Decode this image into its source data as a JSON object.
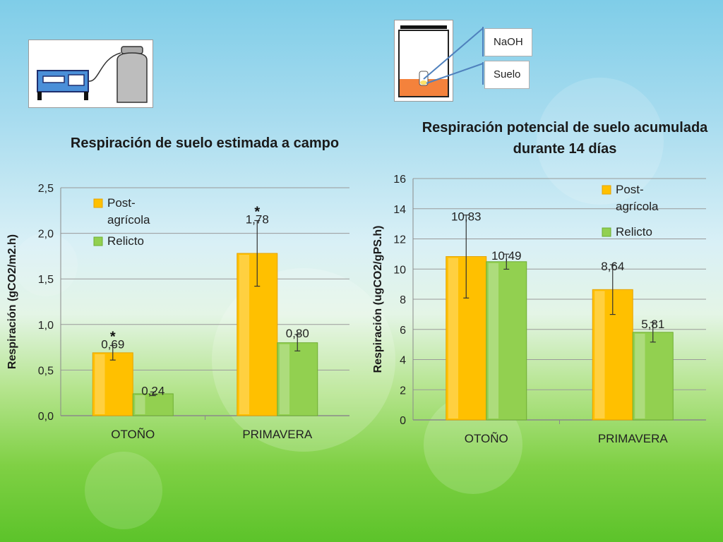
{
  "legend": {
    "post_label": "Post-agrícola",
    "relicto_label": "Relicto"
  },
  "colors": {
    "post": "#ffc000",
    "relicto": "#92d050",
    "post_dark": "#e6a300",
    "relicto_dark": "#6fae33"
  },
  "icons": {
    "left": "soil-respiration-chamber-icon",
    "right": "naoh-jar-icon"
  },
  "callouts": {
    "naoh": "NaOH",
    "suelo": "Suelo"
  },
  "chart_data": [
    {
      "type": "bar",
      "title": "Respiración de suelo estimada a campo",
      "ylabel": "Respiración (gCO2/m2.h)",
      "xlabel": "",
      "categories": [
        "OTOÑO",
        "PRIMAVERA"
      ],
      "ylim": [
        0,
        2.5
      ],
      "yticks": [
        "0,0",
        "0,5",
        "1,0",
        "1,5",
        "2,0",
        "2,5"
      ],
      "ytick_values": [
        0,
        0.5,
        1.0,
        1.5,
        2.0,
        2.5
      ],
      "series": [
        {
          "name": "Post-agrícola",
          "values": [
            0.69,
            1.78
          ],
          "labels": [
            "0,69",
            "1,78"
          ],
          "err": [
            0.08,
            0.36
          ]
        },
        {
          "name": "Relicto",
          "values": [
            0.24,
            0.8
          ],
          "labels": [
            "0,24",
            "0,80"
          ],
          "err": [
            0.02,
            0.09
          ]
        }
      ],
      "significance": [
        "*",
        "*"
      ],
      "legend_position": "top-left",
      "grid": true
    },
    {
      "type": "bar",
      "title": "Respiración potencial de suelo acumulada durante 14 días",
      "ylabel": "Respiración (ugCO2/gPS.h)",
      "xlabel": "",
      "categories": [
        "OTOÑO",
        "PRIMAVERA"
      ],
      "ylim": [
        0,
        16
      ],
      "yticks": [
        "0",
        "2",
        "4",
        "6",
        "8",
        "10",
        "12",
        "14",
        "16"
      ],
      "ytick_values": [
        0,
        2,
        4,
        6,
        8,
        10,
        12,
        14,
        16
      ],
      "series": [
        {
          "name": "Post-agrícola",
          "values": [
            10.83,
            8.64
          ],
          "labels": [
            "10,83",
            "8,64"
          ],
          "err": [
            2.75,
            1.65
          ]
        },
        {
          "name": "Relicto",
          "values": [
            10.49,
            5.81
          ],
          "labels": [
            "10,49",
            "5,81"
          ],
          "err": [
            0.5,
            0.65
          ]
        }
      ],
      "legend_position": "top-right",
      "grid": true
    }
  ]
}
